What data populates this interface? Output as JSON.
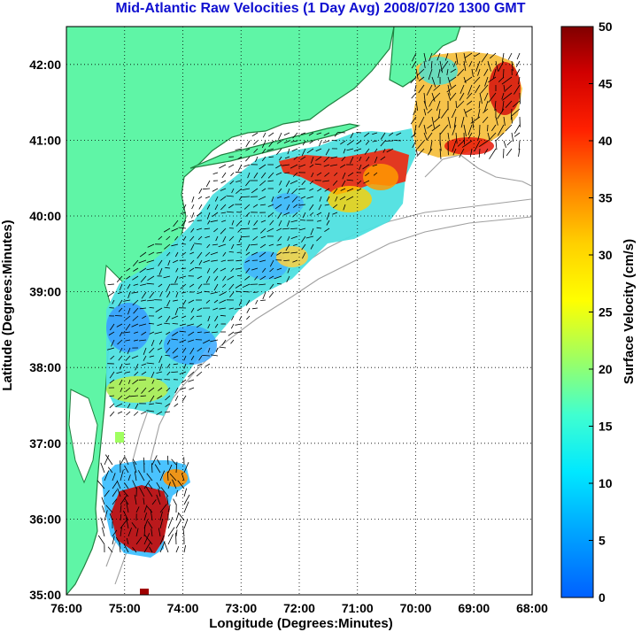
{
  "title": "Mid-Atlantic Raw Velocities (1 Day Avg) 2008/07/20 1300 GMT",
  "map": {
    "xlabel": "Longitude (Degrees:Minutes)",
    "ylabel": "Latitude (Degrees:Minutes)",
    "x_ticks": [
      "76:00",
      "75:00",
      "74:00",
      "73:00",
      "72:00",
      "71:00",
      "70:00",
      "69:00",
      "68:00"
    ],
    "y_ticks": [
      "35:00",
      "36:00",
      "37:00",
      "38:00",
      "39:00",
      "40:00",
      "41:00",
      "42:00"
    ],
    "xlim": [
      -76,
      -68
    ],
    "ylim": [
      35,
      42.5
    ],
    "grid": "dotted",
    "land_color": "#5ff5a6",
    "coast_color": "#208040",
    "bathymetry_color": "#a0a0a0"
  },
  "colorbar": {
    "label": "Surface Velocity (cm/s)",
    "ticks": [
      "0",
      "5",
      "10",
      "15",
      "20",
      "25",
      "30",
      "35",
      "40",
      "45",
      "50"
    ],
    "range": [
      0,
      50
    ],
    "colormap": "jet"
  }
}
